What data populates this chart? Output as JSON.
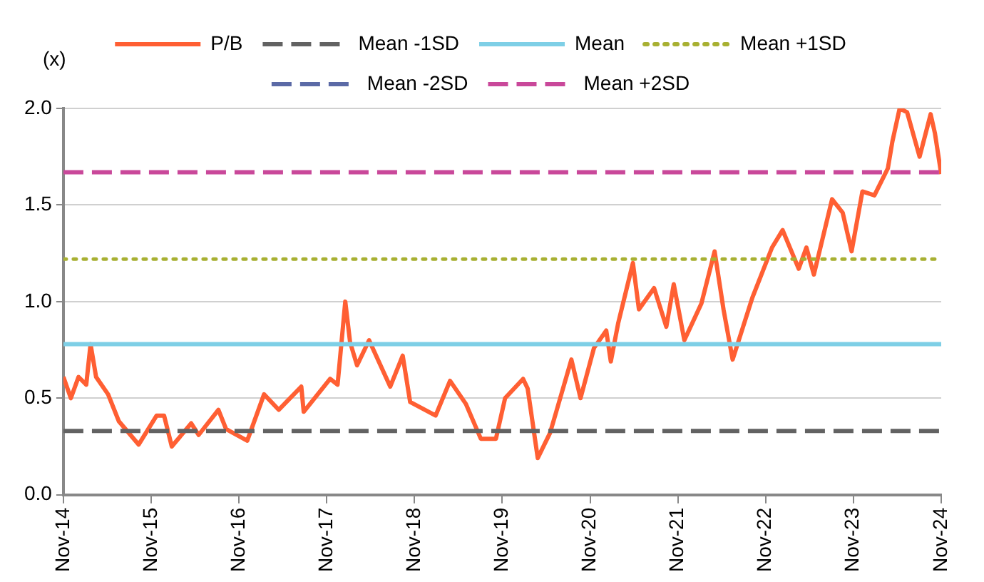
{
  "chart_data": {
    "type": "line",
    "ylabel": "(x)",
    "xlim": [
      "2014-11",
      "2024-11"
    ],
    "xticks": [
      {
        "value": "2014-11",
        "label": "Nov-14"
      },
      {
        "value": "2015-11",
        "label": "Nov-15"
      },
      {
        "value": "2016-11",
        "label": "Nov-16"
      },
      {
        "value": "2017-11",
        "label": "Nov-17"
      },
      {
        "value": "2018-11",
        "label": "Nov-18"
      },
      {
        "value": "2019-11",
        "label": "Nov-19"
      },
      {
        "value": "2020-11",
        "label": "Nov-20"
      },
      {
        "value": "2021-11",
        "label": "Nov-21"
      },
      {
        "value": "2022-11",
        "label": "Nov-22"
      },
      {
        "value": "2023-11",
        "label": "Nov-23"
      },
      {
        "value": "2024-11",
        "label": "Nov-24"
      }
    ],
    "ylim": [
      0,
      2
    ],
    "yticks": [
      {
        "value": 0,
        "label": "0.0"
      },
      {
        "value": 0.5,
        "label": "0.5"
      },
      {
        "value": 1,
        "label": "1.0"
      },
      {
        "value": 1.5,
        "label": "1.5"
      },
      {
        "value": 2,
        "label": "2.0"
      }
    ],
    "grid": "y",
    "legend": "top",
    "marker": "none",
    "series": [
      {
        "name": "P/B",
        "color": "#ff5f33",
        "line_style": "solid",
        "x": [
          "2014-11-01",
          "2014-12-02",
          "2015-01-03",
          "2015-02-04",
          "2015-02-22",
          "2015-03-17",
          "2015-05-06",
          "2015-06-20",
          "2015-09-10",
          "2015-11-24",
          "2015-12-25",
          "2016-01-26",
          "2016-04-16",
          "2016-05-17",
          "2016-08-07",
          "2016-09-08",
          "2016-12-05",
          "2017-02-13",
          "2017-04-15",
          "2017-07-18",
          "2017-07-28",
          "2017-11-15",
          "2017-12-16",
          "2018-01-17",
          "2018-02-06",
          "2018-03-07",
          "2018-04-26",
          "2018-07-23",
          "2018-09-13",
          "2018-10-14",
          "2019-01-28",
          "2019-03-29",
          "2019-06-03",
          "2019-08-04",
          "2019-10-06",
          "2019-11-13",
          "2020-01-27",
          "2020-02-15",
          "2020-03-28",
          "2020-05-18",
          "2020-06-13",
          "2020-08-15",
          "2020-09-22",
          "2020-11-17",
          "2021-01-07",
          "2021-01-26",
          "2021-02-26",
          "2021-04-28",
          "2021-05-23",
          "2021-07-25",
          "2021-09-14",
          "2021-10-15",
          "2021-11-28",
          "2022-02-07",
          "2022-04-03",
          "2022-05-10",
          "2022-06-17",
          "2022-09-07",
          "2022-11-28",
          "2023-01-11",
          "2023-03-19",
          "2023-04-20",
          "2023-05-21",
          "2023-08-05",
          "2023-09-18",
          "2023-10-25",
          "2023-12-09",
          "2024-01-28",
          "2024-03-24",
          "2024-04-12",
          "2024-05-12",
          "2024-06-12",
          "2024-08-03",
          "2024-09-18",
          "2024-10-06",
          "2024-11-01"
        ],
        "values": [
          0.61,
          0.5,
          0.61,
          0.57,
          0.78,
          0.61,
          0.52,
          0.38,
          0.26,
          0.41,
          0.41,
          0.25,
          0.37,
          0.31,
          0.44,
          0.34,
          0.28,
          0.52,
          0.44,
          0.56,
          0.43,
          0.6,
          0.57,
          1.0,
          0.79,
          0.67,
          0.8,
          0.56,
          0.72,
          0.48,
          0.41,
          0.59,
          0.47,
          0.29,
          0.29,
          0.5,
          0.6,
          0.55,
          0.19,
          0.32,
          0.43,
          0.7,
          0.5,
          0.76,
          0.85,
          0.69,
          0.89,
          1.2,
          0.96,
          1.07,
          0.87,
          1.09,
          0.8,
          0.99,
          1.26,
          0.96,
          0.7,
          1.02,
          1.28,
          1.37,
          1.17,
          1.28,
          1.14,
          1.53,
          1.46,
          1.26,
          1.57,
          1.55,
          1.69,
          1.83,
          2.0,
          1.98,
          1.75,
          1.97,
          1.87,
          1.66
        ]
      },
      {
        "name": "Mean -1SD",
        "color": "#626262",
        "line_style": "dashed",
        "x": [
          "2014-11-01",
          "2024-11-01"
        ],
        "values": [
          0.33,
          0.33
        ]
      },
      {
        "name": "Mean",
        "color": "#7ecfe6",
        "line_style": "solid",
        "x": [
          "2014-11-01",
          "2024-11-01"
        ],
        "values": [
          0.78,
          0.78
        ]
      },
      {
        "name": "Mean +1SD",
        "color": "#a8b032",
        "line_style": "dotted",
        "x": [
          "2014-11-01",
          "2024-11-01"
        ],
        "values": [
          1.22,
          1.22
        ]
      },
      {
        "name": "Mean -2SD",
        "color": "#5b6aa6",
        "line_style": "dashed"
      },
      {
        "name": "Mean +2SD",
        "color": "#c9489a",
        "line_style": "dashed",
        "x": [
          "2014-11-01",
          "2024-11-01"
        ],
        "values": [
          1.67,
          1.67
        ]
      }
    ]
  }
}
